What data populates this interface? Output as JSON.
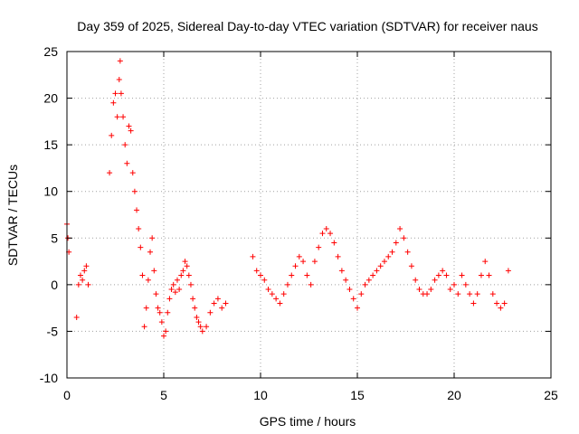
{
  "chart_data": {
    "type": "scatter",
    "title": "Day 359 of 2025, Sidereal Day-to-day VTEC variation (SDTVAR) for receiver naus",
    "xlabel": "GPS time / hours",
    "ylabel": "SDTVAR / TECUs",
    "xlim": [
      0,
      25
    ],
    "ylim": [
      -10,
      25
    ],
    "x_ticks": [
      0,
      5,
      10,
      15,
      20,
      25
    ],
    "y_ticks": [
      -10,
      -5,
      0,
      5,
      10,
      15,
      20,
      25
    ],
    "x_tick_labels": [
      "0",
      "5",
      "10",
      "15",
      "20",
      "25"
    ],
    "y_tick_labels": [
      "-10",
      "-5",
      "0",
      "5",
      "10",
      "15",
      "20",
      "25"
    ],
    "grid": true,
    "marker": "+",
    "color": "#ff0000",
    "series": [
      {
        "name": "SDTVAR",
        "x": [
          0.0,
          0.05,
          0.1,
          0.5,
          0.6,
          0.7,
          0.8,
          0.9,
          1.0,
          1.1,
          2.2,
          2.3,
          2.4,
          2.5,
          2.6,
          2.7,
          2.75,
          2.8,
          2.9,
          3.0,
          3.1,
          3.2,
          3.3,
          3.4,
          3.5,
          3.6,
          3.7,
          3.8,
          3.9,
          4.0,
          4.1,
          4.2,
          4.3,
          4.4,
          4.5,
          4.6,
          4.7,
          4.8,
          4.9,
          5.0,
          5.1,
          5.2,
          5.3,
          5.4,
          5.5,
          5.6,
          5.7,
          5.8,
          5.9,
          6.0,
          6.1,
          6.2,
          6.3,
          6.4,
          6.5,
          6.6,
          6.7,
          6.8,
          6.9,
          7.0,
          7.2,
          7.4,
          7.6,
          7.8,
          8.0,
          8.2,
          9.6,
          9.8,
          10.0,
          10.2,
          10.4,
          10.6,
          10.8,
          11.0,
          11.2,
          11.4,
          11.6,
          11.8,
          12.0,
          12.2,
          12.4,
          12.6,
          12.8,
          13.0,
          13.2,
          13.4,
          13.6,
          13.8,
          14.0,
          14.2,
          14.4,
          14.6,
          14.8,
          15.0,
          15.2,
          15.4,
          15.6,
          15.8,
          16.0,
          16.2,
          16.4,
          16.6,
          16.8,
          17.0,
          17.2,
          17.4,
          17.6,
          17.8,
          18.0,
          18.2,
          18.4,
          18.6,
          18.8,
          19.0,
          19.2,
          19.4,
          19.6,
          19.8,
          20.0,
          20.2,
          20.4,
          20.6,
          20.8,
          21.0,
          21.2,
          21.4,
          21.6,
          21.8,
          22.0,
          22.2,
          22.4,
          22.6,
          22.8
        ],
        "y": [
          6.5,
          5.0,
          3.5,
          -3.5,
          0.0,
          1.0,
          0.5,
          1.5,
          2.0,
          0.0,
          12.0,
          16.0,
          19.5,
          20.5,
          18.0,
          22.0,
          24.0,
          20.5,
          18.0,
          15.0,
          13.0,
          17.0,
          16.5,
          12.0,
          10.0,
          8.0,
          6.0,
          4.0,
          1.0,
          -4.5,
          -2.5,
          0.5,
          3.5,
          5.0,
          1.5,
          -1.0,
          -2.5,
          -3.0,
          -4.0,
          -5.5,
          -5.0,
          -3.0,
          -1.5,
          -0.5,
          0.0,
          -0.8,
          0.5,
          -0.5,
          1.0,
          1.5,
          2.5,
          2.0,
          1.0,
          0.0,
          -1.5,
          -2.5,
          -3.5,
          -4.0,
          -4.5,
          -5.0,
          -4.5,
          -3.0,
          -2.0,
          -1.5,
          -2.5,
          -2.0,
          3.0,
          1.5,
          1.0,
          0.5,
          -0.5,
          -1.0,
          -1.5,
          -2.0,
          -1.0,
          0.0,
          1.0,
          2.0,
          3.0,
          2.5,
          1.0,
          0.0,
          2.5,
          4.0,
          5.5,
          6.0,
          5.5,
          4.5,
          3.0,
          1.5,
          0.5,
          -0.5,
          -1.5,
          -2.5,
          -1.0,
          0.0,
          0.5,
          1.0,
          1.5,
          2.0,
          2.5,
          3.0,
          3.5,
          4.5,
          6.0,
          5.0,
          3.5,
          2.0,
          0.5,
          -0.5,
          -1.0,
          -1.0,
          -0.5,
          0.5,
          1.0,
          1.5,
          1.0,
          -0.5,
          0.0,
          -1.0,
          1.0,
          0.0,
          -1.0,
          -2.0,
          -1.0,
          1.0,
          2.5,
          1.0,
          -1.0,
          -2.0,
          -2.5,
          -2.0,
          1.5
        ]
      }
    ]
  }
}
